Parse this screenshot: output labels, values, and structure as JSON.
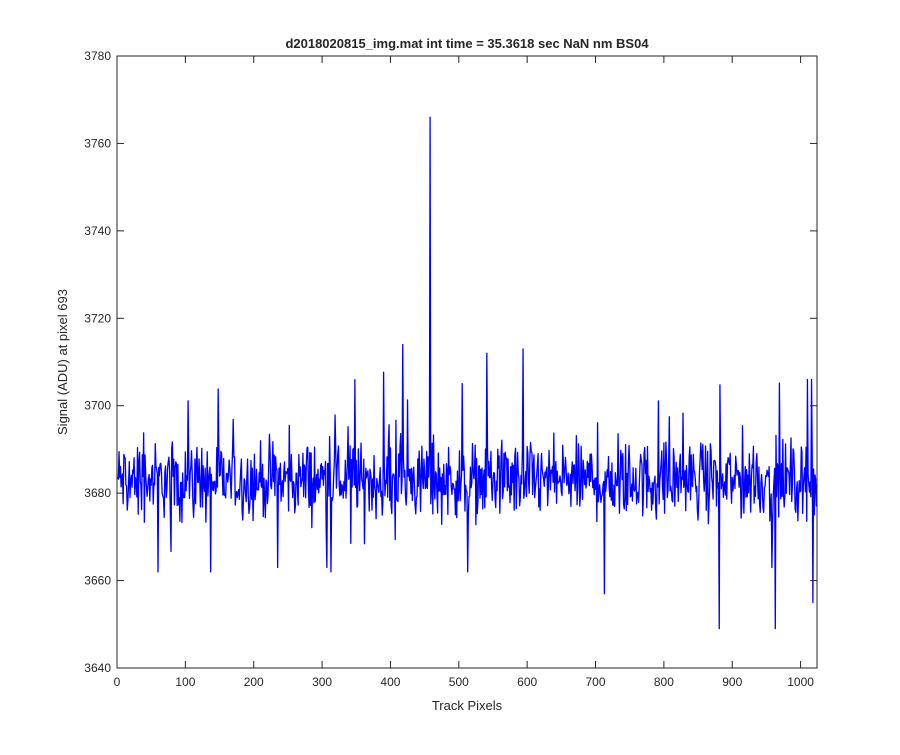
{
  "chart_data": {
    "type": "line",
    "title": "d2018020815_img.mat int time = 35.3618 sec  NaN nm BS04",
    "xlabel": "Track Pixels",
    "ylabel": "Signal (ADU) at pixel 693",
    "xlim": [
      0,
      1024
    ],
    "ylim": [
      3640,
      3780
    ],
    "xticks": [
      0,
      100,
      200,
      300,
      400,
      500,
      600,
      700,
      800,
      900,
      1000
    ],
    "yticks": [
      3640,
      3660,
      3680,
      3700,
      3720,
      3740,
      3760,
      3780
    ],
    "grid": false,
    "line_color": "#0000ff",
    "series": [
      {
        "baseline": 3683,
        "n_points": 1024,
        "x_start": 1,
        "x_step": 1,
        "noise_amplitude": 9,
        "anchor_points": [
          {
            "x": 418,
            "y": 3714
          },
          {
            "x": 458,
            "y": 3766
          },
          {
            "x": 541,
            "y": 3712
          },
          {
            "x": 594,
            "y": 3713
          },
          {
            "x": 713,
            "y": 3657
          },
          {
            "x": 881,
            "y": 3649
          },
          {
            "x": 963,
            "y": 3649
          },
          {
            "x": 1018,
            "y": 3655
          },
          {
            "x": 1010,
            "y": 3706
          },
          {
            "x": 1016,
            "y": 3706
          },
          {
            "x": 60,
            "y": 3662
          },
          {
            "x": 137,
            "y": 3662
          },
          {
            "x": 313,
            "y": 3662
          },
          {
            "x": 513,
            "y": 3662
          }
        ]
      }
    ]
  }
}
